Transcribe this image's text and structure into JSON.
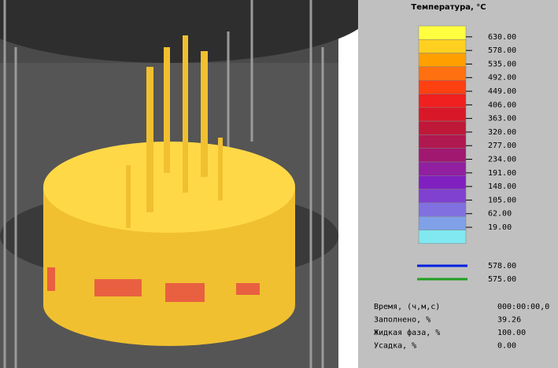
{
  "legend": {
    "title": "Температура, °C",
    "colors": [
      "#ffff40",
      "#ffd020",
      "#ffa000",
      "#ff7010",
      "#ff4010",
      "#f02020",
      "#d81828",
      "#c01838",
      "#b01850",
      "#a01870",
      "#9020a0",
      "#8020c0",
      "#8040d0",
      "#8070e0",
      "#80a0e8",
      "#80e8f0"
    ],
    "labels": [
      "630.00",
      "578.00",
      "535.00",
      "492.00",
      "449.00",
      "406.00",
      "363.00",
      "320.00",
      "277.00",
      "234.00",
      "191.00",
      "148.00",
      "105.00",
      "62.00",
      "19.00"
    ]
  },
  "lines": [
    {
      "color": "#0020e0",
      "label": "578.00"
    },
    {
      "color": "#20a020",
      "label": "575.00"
    }
  ],
  "stats": [
    [
      "Время, (ч,м,с)",
      "000:00:00,0"
    ],
    [
      "Заполнено, %",
      "39.26"
    ],
    [
      "Жидкая фаза, %",
      "100.00"
    ],
    [
      "Усадка, %",
      "0.00"
    ]
  ]
}
